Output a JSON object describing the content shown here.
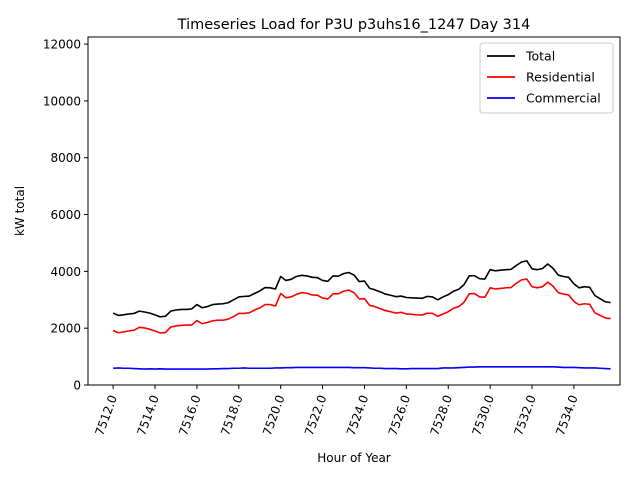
{
  "chart_data": {
    "type": "line",
    "title": "Timeseries Load for P3U p3uhs16_1247  Day 314",
    "xlabel": "Hour of Year",
    "ylabel": "kW total",
    "xlim": [
      7510.8,
      7536.2
    ],
    "ylim": [
      0,
      12250
    ],
    "x_ticks": [
      7512,
      7514,
      7516,
      7518,
      7520,
      7522,
      7524,
      7526,
      7528,
      7530,
      7532,
      7534
    ],
    "x_tick_labels": [
      "7512.0",
      "7514.0",
      "7516.0",
      "7518.0",
      "7520.0",
      "7522.0",
      "7524.0",
      "7526.0",
      "7528.0",
      "7530.0",
      "7532.0",
      "7534.0"
    ],
    "y_ticks": [
      0,
      2000,
      4000,
      6000,
      8000,
      10000,
      12000
    ],
    "y_tick_labels": [
      "0",
      "2000",
      "4000",
      "6000",
      "8000",
      "10000",
      "12000"
    ],
    "legend_position": "top-right",
    "x_start": 7512.0,
    "x_step": 0.25,
    "series": [
      {
        "name": "Total",
        "color": "#000000",
        "values": [
          2530,
          2450,
          2470,
          2500,
          2520,
          2600,
          2570,
          2530,
          2470,
          2400,
          2420,
          2600,
          2640,
          2660,
          2660,
          2680,
          2830,
          2720,
          2760,
          2830,
          2850,
          2860,
          2900,
          3000,
          3100,
          3120,
          3130,
          3220,
          3310,
          3430,
          3420,
          3380,
          3820,
          3680,
          3720,
          3820,
          3860,
          3840,
          3790,
          3780,
          3680,
          3650,
          3840,
          3830,
          3920,
          3960,
          3870,
          3640,
          3660,
          3400,
          3350,
          3280,
          3200,
          3160,
          3110,
          3130,
          3080,
          3070,
          3060,
          3050,
          3120,
          3100,
          3000,
          3100,
          3180,
          3300,
          3370,
          3530,
          3840,
          3850,
          3740,
          3730,
          4060,
          4020,
          4040,
          4060,
          4070,
          4210,
          4330,
          4370,
          4090,
          4060,
          4100,
          4260,
          4110,
          3870,
          3820,
          3790,
          3560,
          3420,
          3460,
          3440,
          3150,
          3040,
          2930,
          2900
        ]
      },
      {
        "name": "Residential",
        "color": "#ff0000",
        "values": [
          1920,
          1840,
          1870,
          1900,
          1930,
          2030,
          2010,
          1960,
          1900,
          1830,
          1850,
          2040,
          2080,
          2100,
          2110,
          2110,
          2270,
          2160,
          2200,
          2260,
          2280,
          2280,
          2320,
          2410,
          2520,
          2520,
          2540,
          2640,
          2710,
          2830,
          2830,
          2780,
          3220,
          3070,
          3100,
          3190,
          3250,
          3230,
          3170,
          3160,
          3060,
          3030,
          3210,
          3210,
          3300,
          3340,
          3250,
          3030,
          3040,
          2800,
          2760,
          2690,
          2620,
          2580,
          2530,
          2560,
          2500,
          2490,
          2470,
          2460,
          2530,
          2520,
          2420,
          2500,
          2580,
          2700,
          2760,
          2910,
          3210,
          3220,
          3100,
          3090,
          3420,
          3380,
          3400,
          3420,
          3430,
          3580,
          3700,
          3730,
          3460,
          3420,
          3460,
          3620,
          3480,
          3250,
          3200,
          3170,
          2940,
          2820,
          2860,
          2840,
          2540,
          2450,
          2360,
          2340
        ]
      },
      {
        "name": "Commercial",
        "color": "#0000ff",
        "values": [
          590,
          600,
          590,
          590,
          580,
          570,
          560,
          570,
          560,
          570,
          560,
          560,
          560,
          560,
          560,
          560,
          560,
          560,
          560,
          570,
          570,
          580,
          580,
          590,
          590,
          600,
          590,
          590,
          590,
          590,
          590,
          600,
          600,
          610,
          610,
          620,
          620,
          620,
          620,
          620,
          620,
          620,
          620,
          620,
          620,
          620,
          610,
          610,
          610,
          600,
          590,
          590,
          580,
          580,
          580,
          570,
          570,
          580,
          580,
          580,
          580,
          580,
          580,
          600,
          600,
          600,
          610,
          620,
          630,
          630,
          640,
          640,
          640,
          640,
          640,
          640,
          640,
          640,
          640,
          640,
          640,
          640,
          640,
          640,
          640,
          630,
          620,
          620,
          620,
          610,
          600,
          600,
          600,
          590,
          580,
          570
        ]
      }
    ]
  }
}
